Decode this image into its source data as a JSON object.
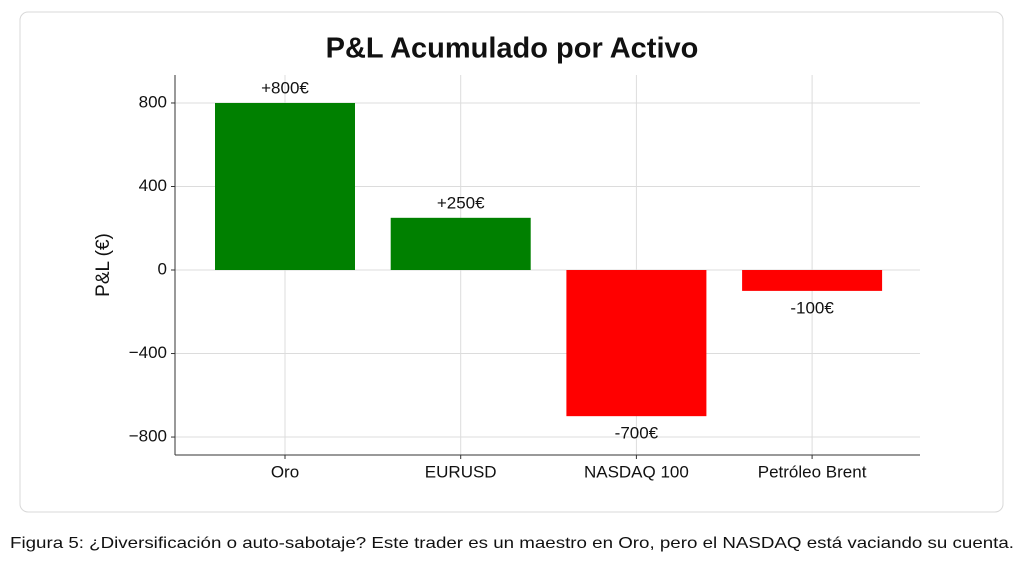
{
  "chart_data": {
    "type": "bar",
    "title": "P&L Acumulado por Activo",
    "y_label": "P&L (€)",
    "categories": [
      "Oro",
      "EURUSD",
      "NASDAQ 100",
      "Petróleo Brent"
    ],
    "values": [
      800,
      250,
      -700,
      -100
    ],
    "value_labels": [
      "+800€",
      "+250€",
      "-700€",
      "-100€"
    ],
    "colors": [
      "#008000",
      "#008000",
      "#ff0000",
      "#ff0000"
    ],
    "ylim": [
      -886,
      934
    ],
    "yticks": [
      {
        "value": -800,
        "label": "−800"
      },
      {
        "value": -400,
        "label": "−400"
      },
      0,
      400,
      800
    ],
    "grid": true,
    "caption": "Figura 5: ¿Diversificación o auto-sabotaje? Este trader es un maestro en Oro, pero el NASDAQ está vaciando su cuenta."
  }
}
